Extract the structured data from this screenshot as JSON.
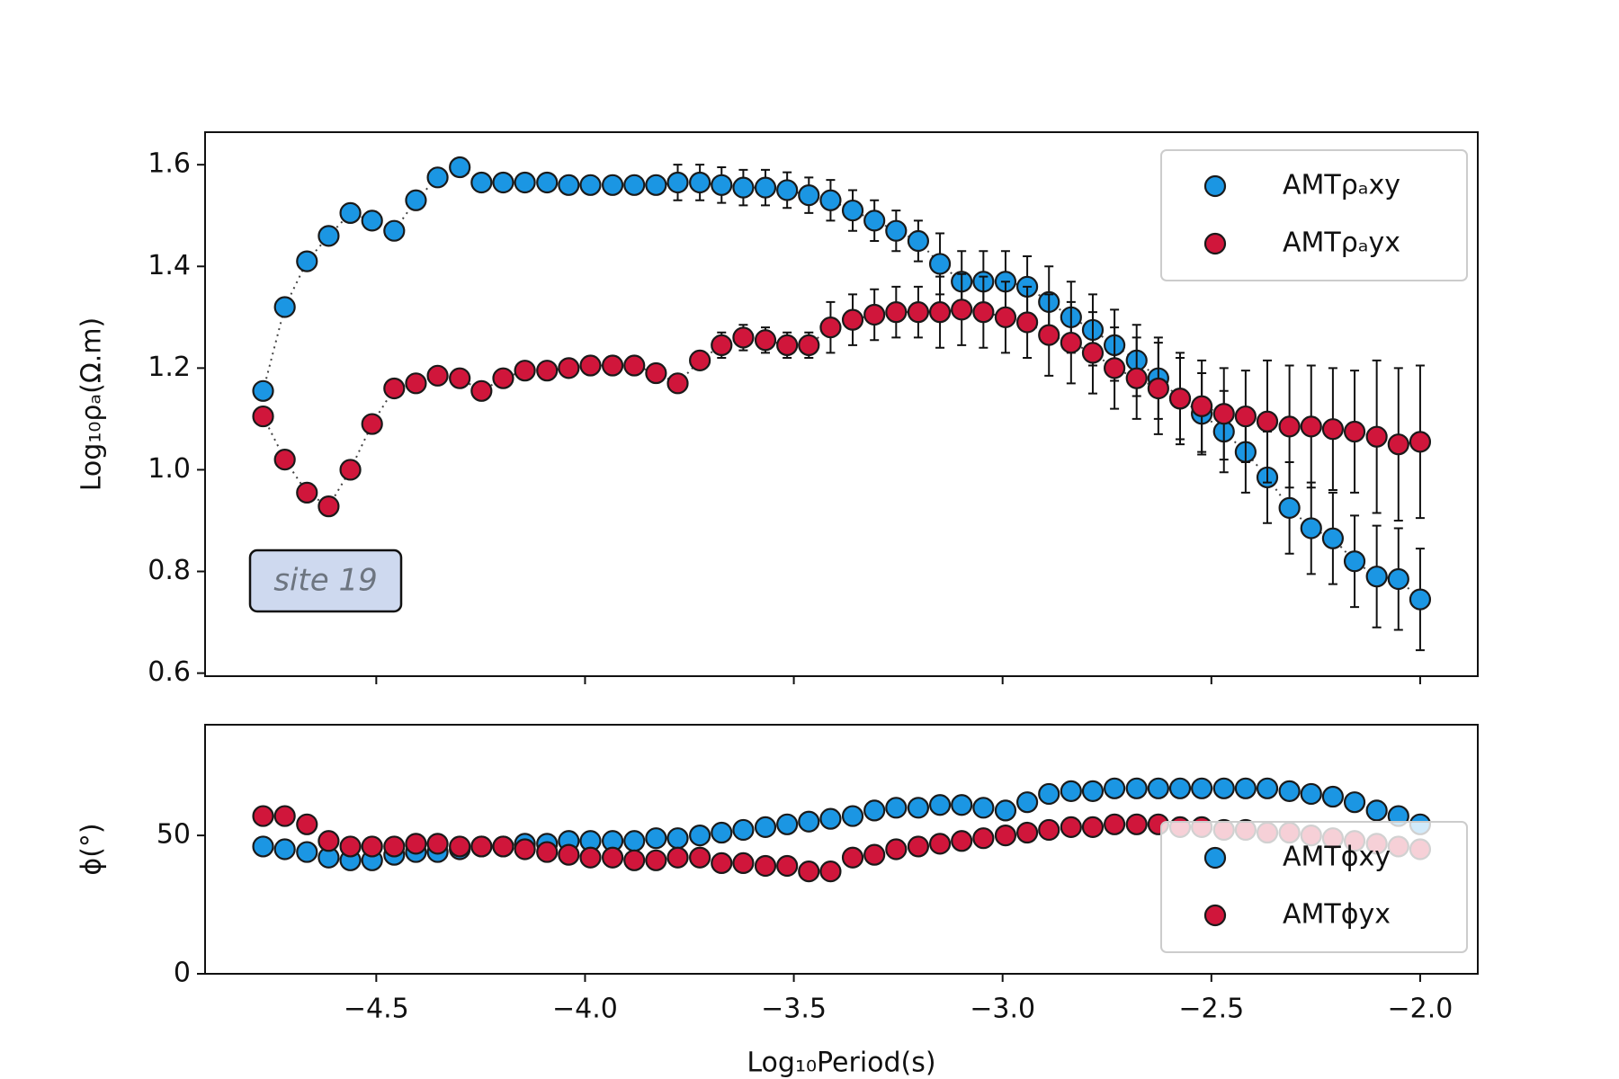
{
  "chart_data": [
    {
      "type": "scatter",
      "ylabel": "Log₁₀ρₐ(Ω.m)",
      "xlim": [
        -4.91,
        -1.862
      ],
      "ylim": [
        0.594,
        1.664
      ],
      "xticks": [
        {
          "value": -4.5,
          "label": "−4.5"
        },
        {
          "value": -4.0,
          "label": "−4.0"
        },
        {
          "value": -3.5,
          "label": "−3.5"
        },
        {
          "value": -3.0,
          "label": "−3.0"
        },
        {
          "value": -2.5,
          "label": "−2.5"
        },
        {
          "value": -2.0,
          "label": "−2.0"
        }
      ],
      "xtick_labels": false,
      "yticks": [
        0.6,
        0.8,
        {
          "value": 1.0,
          "label": "1.0"
        },
        1.2,
        1.4,
        1.6
      ],
      "linestyle": "dotted",
      "legend": "upper right",
      "annotation": "site 19",
      "x": [
        -4.771,
        -4.719,
        -4.666,
        -4.614,
        -4.562,
        -4.51,
        -4.457,
        -4.405,
        -4.353,
        -4.3,
        -4.248,
        -4.196,
        -4.144,
        -4.091,
        -4.039,
        -3.987,
        -3.934,
        -3.882,
        -3.83,
        -3.778,
        -3.725,
        -3.673,
        -3.621,
        -3.568,
        -3.516,
        -3.464,
        -3.412,
        -3.359,
        -3.307,
        -3.255,
        -3.202,
        -3.15,
        -3.098,
        -3.046,
        -2.993,
        -2.941,
        -2.889,
        -2.836,
        -2.784,
        -2.732,
        -2.679,
        -2.627,
        -2.575,
        -2.523,
        -2.47,
        -2.418,
        -2.366,
        -2.313,
        -2.261,
        -2.209,
        -2.157,
        -2.104,
        -2.052,
        -2.0
      ],
      "series": [
        {
          "name": "AMTρₐxy",
          "color": "#1b96e3",
          "values": [
            1.155,
            1.32,
            1.41,
            1.46,
            1.505,
            1.49,
            1.47,
            1.53,
            1.575,
            1.595,
            1.565,
            1.565,
            1.565,
            1.565,
            1.56,
            1.56,
            1.56,
            1.56,
            1.56,
            1.565,
            1.565,
            1.56,
            1.555,
            1.555,
            1.55,
            1.54,
            1.53,
            1.51,
            1.49,
            1.47,
            1.45,
            1.405,
            1.37,
            1.37,
            1.37,
            1.36,
            1.33,
            1.3,
            1.275,
            1.245,
            1.215,
            1.18,
            1.14,
            1.11,
            1.075,
            1.035,
            0.985,
            0.925,
            0.885,
            0.865,
            0.82,
            0.79,
            0.785,
            0.745
          ],
          "errors": [
            0.01,
            0.01,
            0.01,
            0.01,
            0.01,
            0.01,
            0.01,
            0.01,
            0.01,
            0.01,
            0.01,
            0.01,
            0.01,
            0.015,
            0.015,
            0.015,
            0.015,
            0.015,
            0.015,
            0.035,
            0.035,
            0.035,
            0.035,
            0.035,
            0.035,
            0.035,
            0.04,
            0.04,
            0.04,
            0.04,
            0.04,
            0.06,
            0.06,
            0.06,
            0.06,
            0.06,
            0.07,
            0.07,
            0.07,
            0.07,
            0.07,
            0.08,
            0.08,
            0.08,
            0.08,
            0.08,
            0.09,
            0.09,
            0.09,
            0.09,
            0.09,
            0.1,
            0.1,
            0.1
          ]
        },
        {
          "name": "AMTρₐyx",
          "color": "#d0163b",
          "values": [
            1.105,
            1.02,
            0.955,
            0.928,
            1.0,
            1.09,
            1.16,
            1.17,
            1.185,
            1.18,
            1.155,
            1.18,
            1.195,
            1.195,
            1.2,
            1.205,
            1.205,
            1.205,
            1.19,
            1.17,
            1.215,
            1.245,
            1.26,
            1.255,
            1.245,
            1.245,
            1.28,
            1.295,
            1.305,
            1.31,
            1.31,
            1.31,
            1.315,
            1.31,
            1.3,
            1.29,
            1.265,
            1.25,
            1.23,
            1.2,
            1.18,
            1.16,
            1.14,
            1.125,
            1.11,
            1.105,
            1.095,
            1.085,
            1.085,
            1.08,
            1.075,
            1.065,
            1.05,
            1.055
          ],
          "errors": [
            0.012,
            0.012,
            0.012,
            0.012,
            0.012,
            0.012,
            0.012,
            0.012,
            0.012,
            0.012,
            0.012,
            0.012,
            0.012,
            0.012,
            0.012,
            0.012,
            0.012,
            0.012,
            0.012,
            0.012,
            0.012,
            0.025,
            0.025,
            0.025,
            0.025,
            0.025,
            0.05,
            0.05,
            0.05,
            0.05,
            0.05,
            0.07,
            0.07,
            0.07,
            0.07,
            0.07,
            0.08,
            0.08,
            0.08,
            0.08,
            0.08,
            0.09,
            0.09,
            0.09,
            0.09,
            0.09,
            0.12,
            0.12,
            0.12,
            0.12,
            0.12,
            0.15,
            0.15,
            0.15
          ]
        }
      ]
    },
    {
      "type": "scatter",
      "xlabel": "Log₁₀Period(s)",
      "ylabel": "ϕ(°)",
      "xlim": [
        -4.91,
        -1.862
      ],
      "ylim": [
        0,
        90
      ],
      "xticks": [
        {
          "value": -4.5,
          "label": "−4.5"
        },
        {
          "value": -4.0,
          "label": "−4.0"
        },
        {
          "value": -3.5,
          "label": "−3.5"
        },
        {
          "value": -3.0,
          "label": "−3.0"
        },
        {
          "value": -2.5,
          "label": "−2.5"
        },
        {
          "value": -2.0,
          "label": "−2.0"
        }
      ],
      "yticks": [
        0,
        50
      ],
      "legend": "lower right",
      "x": [
        -4.771,
        -4.719,
        -4.666,
        -4.614,
        -4.562,
        -4.51,
        -4.457,
        -4.405,
        -4.353,
        -4.3,
        -4.248,
        -4.196,
        -4.144,
        -4.091,
        -4.039,
        -3.987,
        -3.934,
        -3.882,
        -3.83,
        -3.778,
        -3.725,
        -3.673,
        -3.621,
        -3.568,
        -3.516,
        -3.464,
        -3.412,
        -3.359,
        -3.307,
        -3.255,
        -3.202,
        -3.15,
        -3.098,
        -3.046,
        -2.993,
        -2.941,
        -2.889,
        -2.836,
        -2.784,
        -2.732,
        -2.679,
        -2.627,
        -2.575,
        -2.523,
        -2.47,
        -2.418,
        -2.366,
        -2.313,
        -2.261,
        -2.209,
        -2.157,
        -2.104,
        -2.052,
        -2.0
      ],
      "series": [
        {
          "name": "AMTϕxy",
          "color": "#1b96e3",
          "values": [
            46,
            45,
            44,
            42,
            41,
            41,
            43,
            44,
            44,
            45,
            46,
            46,
            47,
            47,
            48,
            48,
            48,
            48,
            49,
            49,
            50,
            51,
            52,
            53,
            54,
            55,
            56,
            57,
            59,
            60,
            60,
            61,
            61,
            60,
            59,
            62,
            65,
            66,
            66,
            67,
            67,
            67,
            67,
            67,
            67,
            67,
            67,
            66,
            65,
            64,
            62,
            59,
            57,
            54
          ]
        },
        {
          "name": "AMTϕyx",
          "color": "#d0163b",
          "values": [
            57,
            57,
            54,
            48,
            46,
            46,
            46,
            47,
            47,
            46,
            46,
            46,
            45,
            44,
            43,
            42,
            42,
            41,
            41,
            42,
            42,
            40,
            40,
            39,
            39,
            37,
            37,
            42,
            43,
            45,
            46,
            47,
            48,
            49,
            50,
            51,
            52,
            53,
            53,
            54,
            54,
            54,
            53,
            53,
            52,
            52,
            51,
            51,
            50,
            49,
            48,
            47,
            46,
            45
          ]
        }
      ]
    }
  ]
}
